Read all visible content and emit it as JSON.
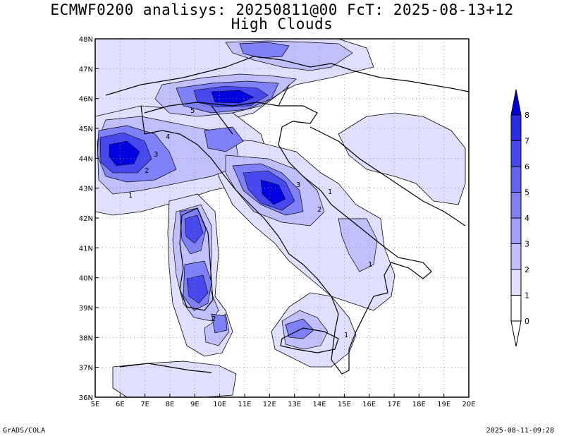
{
  "title": {
    "line1": "ECMWF0200 analisys: 20250811@00 FcT: 2025-08-13+12",
    "line2": "High Clouds"
  },
  "map": {
    "lon_ticks": [
      "5E",
      "6E",
      "7E",
      "8E",
      "9E",
      "10E",
      "11E",
      "12E",
      "13E",
      "14E",
      "15E",
      "16E",
      "17E",
      "18E",
      "19E",
      "20E"
    ],
    "lat_ticks": [
      "48N",
      "47N",
      "46N",
      "45N",
      "44N",
      "43N",
      "42N",
      "41N",
      "40N",
      "39N",
      "38N",
      "37N",
      "36N"
    ],
    "lon_range": [
      5,
      20
    ],
    "lat_range": [
      36,
      48
    ],
    "grid": "dotted",
    "contour_labels": [
      "1",
      "2",
      "3",
      "4",
      "5",
      "1",
      "2",
      "3",
      "1",
      "2",
      "1"
    ]
  },
  "colorbar": {
    "labels": [
      "0",
      "1",
      "2",
      "3",
      "4",
      "5",
      "6",
      "7",
      "8"
    ],
    "colors": [
      "#ffffff",
      "#e0e0fe",
      "#c0c0fd",
      "#a0a0fb",
      "#8080f8",
      "#6464f4",
      "#4848ef",
      "#2c2ce8",
      "#0000e0"
    ]
  },
  "footer": {
    "credit": "GrADS/COLA",
    "timestamp": "2025-08-11-09:28"
  }
}
